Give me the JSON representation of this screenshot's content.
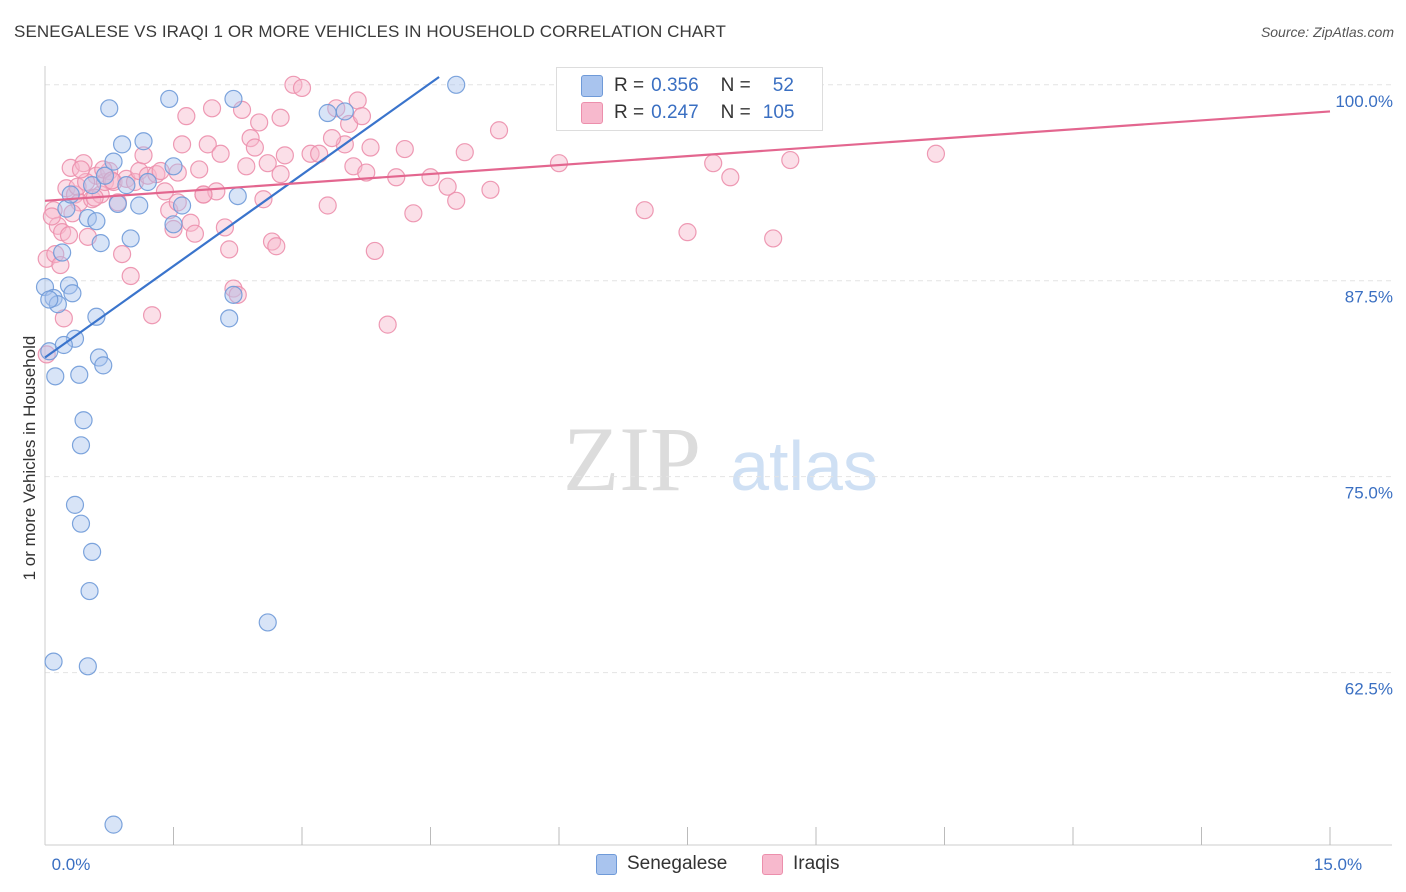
{
  "header": {
    "title": "SENEGALESE VS IRAQI 1 OR MORE VEHICLES IN HOUSEHOLD CORRELATION CHART",
    "source": "Source: ZipAtlas.com"
  },
  "watermark": {
    "zip": "ZIP",
    "atlas": "atlas"
  },
  "legend": {
    "rows": [
      {
        "r_label": "R =",
        "r_value": "0.356",
        "n_label": "N =",
        "n_value": "52"
      },
      {
        "r_label": "R =",
        "r_value": "0.247",
        "n_label": "N =",
        "n_value": "105"
      }
    ]
  },
  "bottom_legend": {
    "senegalese": "Senegalese",
    "iraqis": "Iraqis"
  },
  "colors": {
    "senegalese_fill": "#a9c4ee",
    "senegalese_stroke": "#6f9ad8",
    "senegalese_line": "#3a74cc",
    "iraqis_fill": "#f7b9cd",
    "iraqis_stroke": "#ec8fac",
    "iraqis_line": "#e3668f",
    "axis_label": "#3a6fc2",
    "grid": "#e4e4e4"
  },
  "chart_data": {
    "type": "scatter",
    "title": "SENEGALESE VS IRAQI 1 OR MORE VEHICLES IN HOUSEHOLD CORRELATION CHART",
    "xlabel": "",
    "ylabel": "1 or more Vehicles in Household",
    "xlim": [
      0,
      15
    ],
    "ylim": [
      51.5,
      101.2
    ],
    "x_tick_labels": [
      {
        "value": 0,
        "label": "0.0%"
      },
      {
        "value": 15,
        "label": "15.0%"
      }
    ],
    "y_tick_labels": [
      {
        "value": 100,
        "label": "100.0%"
      },
      {
        "value": 87.5,
        "label": "87.5%"
      },
      {
        "value": 75,
        "label": "75.0%"
      },
      {
        "value": 62.5,
        "label": "62.5%"
      }
    ],
    "x_minor_ticks": [
      1.5,
      3.0,
      4.5,
      6.0,
      7.5,
      9.0,
      10.5,
      12.0,
      13.5
    ],
    "series": [
      {
        "name": "Senegalese",
        "color": "#6f9ad8",
        "trend": {
          "x": [
            0.0,
            4.6
          ],
          "y": [
            82.6,
            100.5
          ]
        },
        "points": [
          [
            0.0,
            87.1
          ],
          [
            0.1,
            86.4
          ],
          [
            0.15,
            86.0
          ],
          [
            0.05,
            83.0
          ],
          [
            0.12,
            81.4
          ],
          [
            0.2,
            89.3
          ],
          [
            0.25,
            92.1
          ],
          [
            0.3,
            93.0
          ],
          [
            0.28,
            87.2
          ],
          [
            0.32,
            86.7
          ],
          [
            0.35,
            83.8
          ],
          [
            0.4,
            81.5
          ],
          [
            0.22,
            83.4
          ],
          [
            0.45,
            78.6
          ],
          [
            0.42,
            77.0
          ],
          [
            0.5,
            91.5
          ],
          [
            0.55,
            93.6
          ],
          [
            0.6,
            91.3
          ],
          [
            0.65,
            89.9
          ],
          [
            0.7,
            94.2
          ],
          [
            0.75,
            98.5
          ],
          [
            0.8,
            95.1
          ],
          [
            0.85,
            92.4
          ],
          [
            0.9,
            96.2
          ],
          [
            0.95,
            93.6
          ],
          [
            1.0,
            90.2
          ],
          [
            1.1,
            92.3
          ],
          [
            1.15,
            96.4
          ],
          [
            1.5,
            94.8
          ],
          [
            1.6,
            92.3
          ],
          [
            1.5,
            91.1
          ],
          [
            1.45,
            99.1
          ],
          [
            2.2,
            99.1
          ],
          [
            2.25,
            92.9
          ],
          [
            2.2,
            86.6
          ],
          [
            2.15,
            85.1
          ],
          [
            3.3,
            98.2
          ],
          [
            3.5,
            98.3
          ],
          [
            4.8,
            100.0
          ],
          [
            0.6,
            85.2
          ],
          [
            0.63,
            82.6
          ],
          [
            0.68,
            82.1
          ],
          [
            0.35,
            73.2
          ],
          [
            0.42,
            72.0
          ],
          [
            0.55,
            70.2
          ],
          [
            0.52,
            67.7
          ],
          [
            2.6,
            65.7
          ],
          [
            0.1,
            63.2
          ],
          [
            0.5,
            62.9
          ],
          [
            0.8,
            52.8
          ],
          [
            0.05,
            86.3
          ],
          [
            1.2,
            93.8
          ]
        ]
      },
      {
        "name": "Iraqis",
        "color": "#ec8fac",
        "trend": {
          "x": [
            0.0,
            15.0
          ],
          "y": [
            92.6,
            98.3
          ]
        },
        "points": [
          [
            0.02,
            88.9
          ],
          [
            0.02,
            82.8
          ],
          [
            0.1,
            92.0
          ],
          [
            0.15,
            91.0
          ],
          [
            0.2,
            90.6
          ],
          [
            0.25,
            93.4
          ],
          [
            0.3,
            94.7
          ],
          [
            0.35,
            93.0
          ],
          [
            0.4,
            92.5
          ],
          [
            0.45,
            95.0
          ],
          [
            0.5,
            90.3
          ],
          [
            0.55,
            92.7
          ],
          [
            0.6,
            94.2
          ],
          [
            0.65,
            93.0
          ],
          [
            0.7,
            93.8
          ],
          [
            0.75,
            94.5
          ],
          [
            0.8,
            93.8
          ],
          [
            0.85,
            92.5
          ],
          [
            0.9,
            89.2
          ],
          [
            0.95,
            94.0
          ],
          [
            1.0,
            87.8
          ],
          [
            1.05,
            93.8
          ],
          [
            1.1,
            94.5
          ],
          [
            1.15,
            95.5
          ],
          [
            1.2,
            94.2
          ],
          [
            1.3,
            94.3
          ],
          [
            1.35,
            94.5
          ],
          [
            1.4,
            93.2
          ],
          [
            1.45,
            92.0
          ],
          [
            1.5,
            90.8
          ],
          [
            1.55,
            92.5
          ],
          [
            1.6,
            96.2
          ],
          [
            1.65,
            98.0
          ],
          [
            1.7,
            91.2
          ],
          [
            1.75,
            90.5
          ],
          [
            1.8,
            94.6
          ],
          [
            1.85,
            93.0
          ],
          [
            1.9,
            96.2
          ],
          [
            1.95,
            98.5
          ],
          [
            2.0,
            93.2
          ],
          [
            2.05,
            95.6
          ],
          [
            2.1,
            90.9
          ],
          [
            2.15,
            89.5
          ],
          [
            2.2,
            87.0
          ],
          [
            2.25,
            86.6
          ],
          [
            2.3,
            98.4
          ],
          [
            2.35,
            94.8
          ],
          [
            2.4,
            96.6
          ],
          [
            2.45,
            96.0
          ],
          [
            2.5,
            97.6
          ],
          [
            2.55,
            92.7
          ],
          [
            2.6,
            95.0
          ],
          [
            2.65,
            90.0
          ],
          [
            2.7,
            89.7
          ],
          [
            2.75,
            94.3
          ],
          [
            2.8,
            95.5
          ],
          [
            2.9,
            100.0
          ],
          [
            3.0,
            99.8
          ],
          [
            3.1,
            95.6
          ],
          [
            3.2,
            95.6
          ],
          [
            3.3,
            92.3
          ],
          [
            3.4,
            98.5
          ],
          [
            3.5,
            96.2
          ],
          [
            3.55,
            97.5
          ],
          [
            3.6,
            94.8
          ],
          [
            3.65,
            99.0
          ],
          [
            3.7,
            98.0
          ],
          [
            3.75,
            94.4
          ],
          [
            3.8,
            96.0
          ],
          [
            3.85,
            89.4
          ],
          [
            4.0,
            84.7
          ],
          [
            4.1,
            94.1
          ],
          [
            4.2,
            95.9
          ],
          [
            4.3,
            91.8
          ],
          [
            4.5,
            94.1
          ],
          [
            4.7,
            93.5
          ],
          [
            4.8,
            92.6
          ],
          [
            4.9,
            95.7
          ],
          [
            5.2,
            93.3
          ],
          [
            5.3,
            97.1
          ],
          [
            6.0,
            95.0
          ],
          [
            7.0,
            92.0
          ],
          [
            7.5,
            90.6
          ],
          [
            7.8,
            95.0
          ],
          [
            8.0,
            94.1
          ],
          [
            8.5,
            90.2
          ],
          [
            8.7,
            95.2
          ],
          [
            10.4,
            95.6
          ],
          [
            0.12,
            89.2
          ],
          [
            0.18,
            88.5
          ],
          [
            0.22,
            85.1
          ],
          [
            0.28,
            90.4
          ],
          [
            0.32,
            91.8
          ],
          [
            0.38,
            93.5
          ],
          [
            0.48,
            93.8
          ],
          [
            0.58,
            92.8
          ],
          [
            0.68,
            94.6
          ],
          [
            0.78,
            93.9
          ],
          [
            1.25,
            85.3
          ],
          [
            1.55,
            94.4
          ],
          [
            2.75,
            97.9
          ],
          [
            3.35,
            96.6
          ],
          [
            0.42,
            94.6
          ],
          [
            1.85,
            93.0
          ],
          [
            0.08,
            91.6
          ]
        ]
      }
    ],
    "legend": [
      {
        "name": "Senegalese",
        "r": 0.356,
        "n": 52
      },
      {
        "name": "Iraqis",
        "r": 0.247,
        "n": 105
      }
    ]
  }
}
